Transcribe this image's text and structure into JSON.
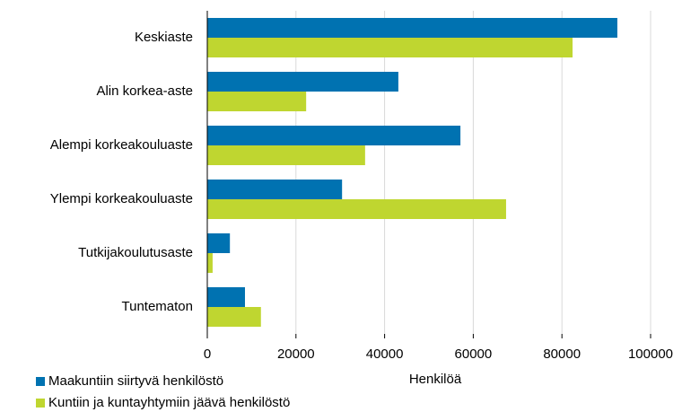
{
  "chart_data": {
    "type": "barh",
    "categories": [
      "Keskiaste",
      "Alin korkea-aste",
      "Alempi korkeakouluaste",
      "Ylempi korkeakouluaste",
      "Tutkijakoulutusaste",
      "Tuntematon"
    ],
    "series": [
      {
        "name": "Maakuntiin siirtyvä henkilöstö",
        "color": "#0072b1",
        "values": [
          92500,
          43100,
          57100,
          30400,
          5100,
          8500
        ]
      },
      {
        "name": "Kuntiin ja kuntayhtymiin jäävä henkilöstö",
        "color": "#bfd630",
        "values": [
          82400,
          22300,
          35600,
          67400,
          1200,
          12100
        ]
      }
    ],
    "x_label": "Henkilöä",
    "xlim": [
      0,
      100000
    ],
    "xticks": [
      0,
      20000,
      40000,
      60000,
      80000,
      100000
    ],
    "grid": true,
    "legend": "bottom-left"
  }
}
